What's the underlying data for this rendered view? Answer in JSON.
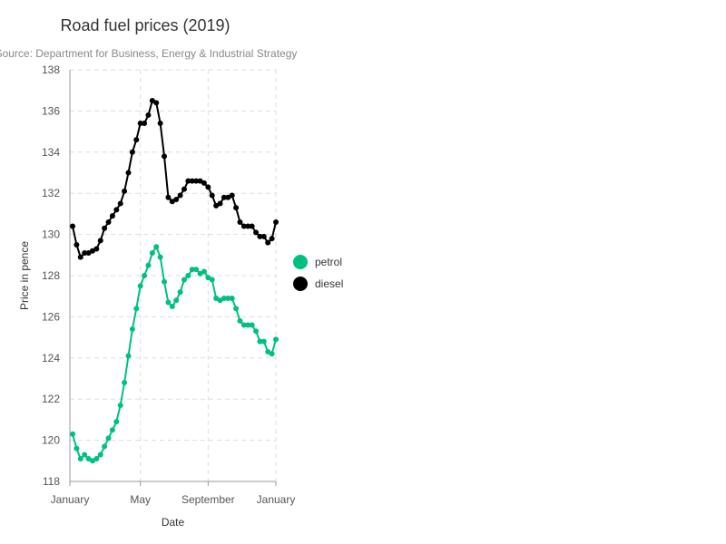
{
  "chart_data": {
    "type": "line",
    "title": "Road fuel prices (2019)",
    "subtitle": "Source: Department for Business, Energy & Industrial Strategy",
    "xlabel": "Date",
    "ylabel": "Price in pence",
    "x_tick_labels": [
      "January",
      "May",
      "September",
      "January"
    ],
    "x_tick_weeks": [
      0,
      17,
      34,
      51
    ],
    "ylim": [
      118,
      138
    ],
    "y_ticks": [
      118,
      120,
      122,
      124,
      126,
      128,
      130,
      132,
      134,
      136,
      138
    ],
    "grid": true,
    "legend_position": "right",
    "series": [
      {
        "name": "petrol",
        "color": "#00C07F",
        "values": [
          120.3,
          119.6,
          119.1,
          119.3,
          119.1,
          119.0,
          119.1,
          119.3,
          119.7,
          120.1,
          120.5,
          120.9,
          121.7,
          122.8,
          124.1,
          125.4,
          126.4,
          127.5,
          128.0,
          128.5,
          129.1,
          129.4,
          128.9,
          127.7,
          126.7,
          126.5,
          126.8,
          127.2,
          127.8,
          128.0,
          128.3,
          128.3,
          128.1,
          128.2,
          127.9,
          127.8,
          126.9,
          126.8,
          126.9,
          126.9,
          126.9,
          126.4,
          125.8,
          125.6,
          125.6,
          125.6,
          125.3,
          124.8,
          124.8,
          124.3,
          124.2,
          124.9
        ]
      },
      {
        "name": "diesel",
        "color": "#000000",
        "values": [
          130.4,
          129.5,
          128.9,
          129.1,
          129.1,
          129.2,
          129.3,
          129.7,
          130.3,
          130.6,
          130.9,
          131.2,
          131.5,
          132.1,
          133.0,
          134.0,
          134.6,
          135.4,
          135.4,
          135.8,
          136.5,
          136.4,
          135.4,
          133.8,
          131.8,
          131.6,
          131.7,
          131.9,
          132.2,
          132.6,
          132.6,
          132.6,
          132.6,
          132.5,
          132.3,
          131.9,
          131.4,
          131.5,
          131.8,
          131.8,
          131.9,
          131.3,
          130.6,
          130.4,
          130.4,
          130.4,
          130.1,
          129.9,
          129.9,
          129.6,
          129.8,
          130.6
        ]
      }
    ]
  }
}
